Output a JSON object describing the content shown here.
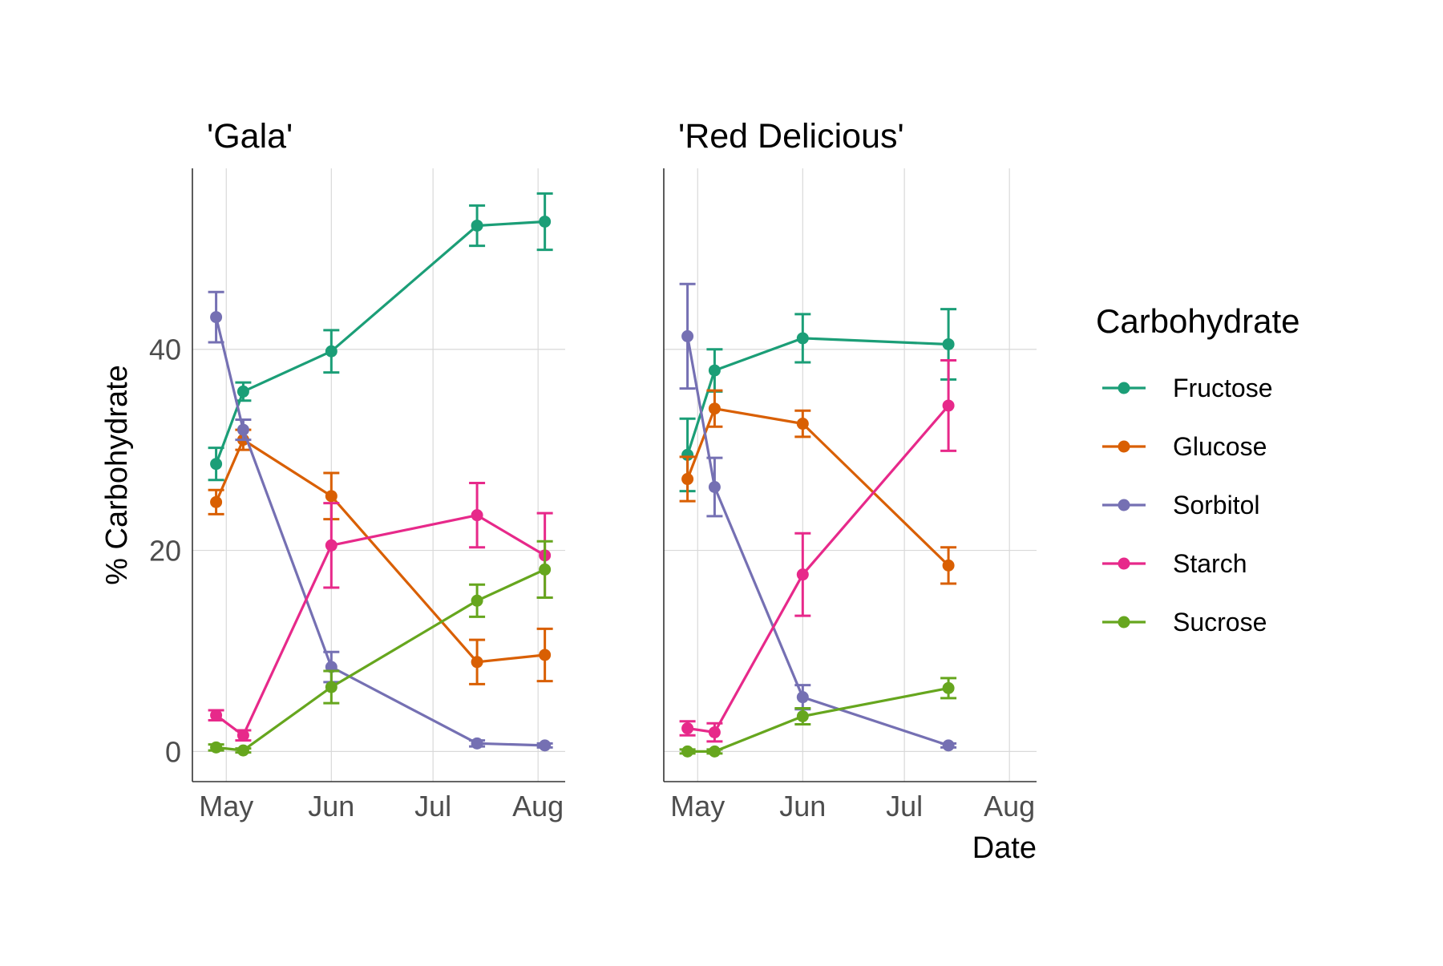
{
  "chart_data": {
    "type": "line",
    "ylabel": "% Carbohydrate",
    "xlabel": "Date",
    "legend_title": "Carbohydrate",
    "legend_position": "right",
    "grid": true,
    "ylim": [
      -3,
      58
    ],
    "y_ticks": [
      0,
      20,
      40
    ],
    "x_ticks": [
      {
        "date": "2019-05-01",
        "label": "May"
      },
      {
        "date": "2019-06-01",
        "label": "Jun"
      },
      {
        "date": "2019-07-01",
        "label": "Jul"
      },
      {
        "date": "2019-08-01",
        "label": "Aug"
      }
    ],
    "xlim": [
      "2019-04-21",
      "2019-08-09"
    ],
    "series_names": [
      "Fructose",
      "Glucose",
      "Sorbitol",
      "Starch",
      "Sucrose"
    ],
    "colors": {
      "Fructose": "#1b9e77",
      "Glucose": "#d95f02",
      "Sorbitol": "#7570b3",
      "Starch": "#e7298a",
      "Sucrose": "#66a61e"
    },
    "panels": [
      {
        "title": "'Gala'",
        "x": [
          "2019-04-28",
          "2019-05-06",
          "2019-06-01",
          "2019-07-14",
          "2019-08-03"
        ],
        "series": [
          {
            "name": "Fructose",
            "values": [
              28.6,
              35.8,
              39.8,
              52.3,
              52.7
            ],
            "errors": [
              1.6,
              0.9,
              2.1,
              2.0,
              2.8
            ]
          },
          {
            "name": "Glucose",
            "values": [
              24.8,
              31.0,
              25.4,
              8.9,
              9.6
            ],
            "errors": [
              1.2,
              1.0,
              2.3,
              2.2,
              2.6
            ]
          },
          {
            "name": "Sorbitol",
            "values": [
              43.2,
              32.0,
              8.4,
              0.8,
              0.6
            ],
            "errors": [
              2.5,
              1.0,
              1.5,
              0.3,
              0.2
            ]
          },
          {
            "name": "Starch",
            "values": [
              3.6,
              1.6,
              20.5,
              23.5,
              19.5
            ],
            "errors": [
              0.5,
              0.5,
              4.2,
              3.2,
              4.2
            ]
          },
          {
            "name": "Sucrose",
            "values": [
              0.4,
              0.1,
              6.4,
              15.0,
              18.1
            ],
            "errors": [
              0.3,
              0.2,
              1.6,
              1.6,
              2.8
            ]
          }
        ]
      },
      {
        "title": "'Red Delicious'",
        "x": [
          "2019-04-28",
          "2019-05-06",
          "2019-06-01",
          "2019-07-14"
        ],
        "series": [
          {
            "name": "Fructose",
            "values": [
              29.5,
              37.9,
              41.1,
              40.5
            ],
            "errors": [
              3.6,
              2.1,
              2.4,
              3.5
            ]
          },
          {
            "name": "Glucose",
            "values": [
              27.1,
              34.1,
              32.6,
              18.5
            ],
            "errors": [
              2.2,
              1.8,
              1.3,
              1.8
            ]
          },
          {
            "name": "Sorbitol",
            "values": [
              41.3,
              26.3,
              5.4,
              0.6
            ],
            "errors": [
              5.2,
              2.9,
              1.2,
              0.2
            ]
          },
          {
            "name": "Starch",
            "values": [
              2.3,
              1.9,
              17.6,
              34.4
            ],
            "errors": [
              0.7,
              0.9,
              4.1,
              4.5
            ]
          },
          {
            "name": "Sucrose",
            "values": [
              0.0,
              0.0,
              3.5,
              6.3
            ],
            "errors": [
              0.2,
              0.2,
              0.8,
              1.0
            ]
          }
        ]
      }
    ]
  }
}
